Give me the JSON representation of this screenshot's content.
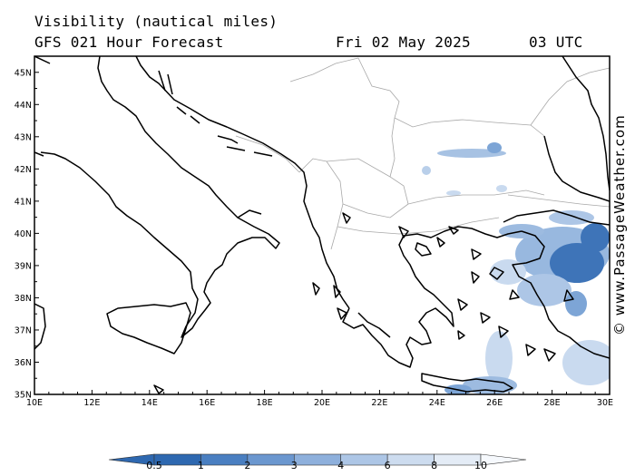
{
  "header": {
    "title": "Visibility (nautical miles)",
    "model": "GFS 021 Hour Forecast",
    "date": "Fri 02 May 2025",
    "time": "03 UTC"
  },
  "credit": "© www.PassageWeather.com",
  "map": {
    "lon_range": [
      10,
      30
    ],
    "lat_range": [
      35,
      45.5
    ],
    "lat_labels": [
      "35N",
      "36N",
      "37N",
      "38N",
      "39N",
      "40N",
      "41N",
      "42N",
      "43N",
      "44N",
      "45N"
    ],
    "lon_labels": [
      "10E",
      "12E",
      "14E",
      "16E",
      "18E",
      "20E",
      "22E",
      "24E",
      "26E",
      "28E",
      "30E"
    ]
  },
  "colorbar": {
    "labels": [
      "0.5",
      "1",
      "2",
      "3",
      "4",
      "6",
      "8",
      "10"
    ],
    "colors": [
      "#2e68b0",
      "#4a7fc1",
      "#6b97cf",
      "#8eb0dc",
      "#adc6e6",
      "#cddcef",
      "#e4ecf6",
      "#f6f9fd"
    ]
  },
  "colors": {
    "coast": "#000000",
    "border": "#a8a8a8",
    "frame": "#000000"
  }
}
